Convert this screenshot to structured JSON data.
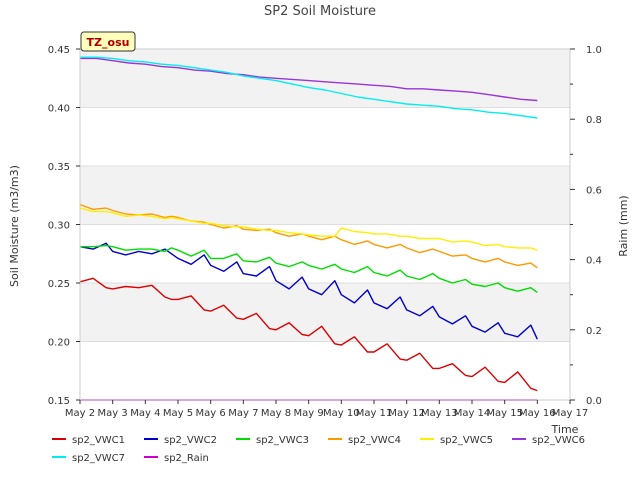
{
  "chart_data": {
    "type": "line",
    "title": "SP2 Soil Moisture",
    "annotation": "TZ_osu",
    "xlabel": "Time",
    "ylabel": "Soil Moisture (m3/m3)",
    "y2label": "Raim (mm)",
    "xlim": [
      2,
      17
    ],
    "ylim": [
      0.15,
      0.45
    ],
    "y2lim": [
      0.0,
      1.0
    ],
    "x_ticks": [
      2,
      3,
      4,
      5,
      6,
      7,
      8,
      9,
      10,
      11,
      12,
      13,
      14,
      15,
      16,
      17
    ],
    "x_tick_labels": [
      "May 2",
      "May 3",
      "May 4",
      "May 5",
      "May 6",
      "May 7",
      "May 8",
      "May 9",
      "May 10",
      "May 11",
      "May 12",
      "May 13",
      "May 14",
      "May 15",
      "May 16",
      "May 17"
    ],
    "y_ticks": [
      0.15,
      0.2,
      0.25,
      0.3,
      0.35,
      0.4,
      0.45
    ],
    "y_tick_labels": [
      "0.15",
      "0.20",
      "0.25",
      "0.30",
      "0.35",
      "0.40",
      "0.45"
    ],
    "y2_ticks": [
      0.0,
      0.2,
      0.4,
      0.6,
      0.8,
      1.0
    ],
    "y2_tick_labels": [
      "0.0",
      "0.2",
      "0.4",
      "0.6",
      "0.8",
      "1.0"
    ],
    "series": [
      {
        "name": "sp2_VWC1",
        "color": "#dd0000",
        "axis": "left",
        "x": [
          2.0,
          2.4,
          2.8,
          3.0,
          3.4,
          3.8,
          4.2,
          4.6,
          4.8,
          5.0,
          5.4,
          5.8,
          6.0,
          6.4,
          6.8,
          7.0,
          7.4,
          7.8,
          8.0,
          8.4,
          8.8,
          9.0,
          9.4,
          9.8,
          10.0,
          10.4,
          10.8,
          11.0,
          11.4,
          11.8,
          12.0,
          12.4,
          12.8,
          13.0,
          13.4,
          13.8,
          14.0,
          14.4,
          14.8,
          15.0,
          15.4,
          15.8,
          16.0
        ],
        "values": [
          0.251,
          0.254,
          0.246,
          0.245,
          0.247,
          0.246,
          0.248,
          0.238,
          0.236,
          0.236,
          0.239,
          0.227,
          0.226,
          0.231,
          0.22,
          0.219,
          0.224,
          0.211,
          0.21,
          0.216,
          0.206,
          0.205,
          0.213,
          0.198,
          0.197,
          0.204,
          0.191,
          0.191,
          0.198,
          0.185,
          0.184,
          0.19,
          0.177,
          0.177,
          0.181,
          0.171,
          0.17,
          0.178,
          0.166,
          0.165,
          0.174,
          0.16,
          0.158
        ]
      },
      {
        "name": "sp2_VWC2",
        "color": "#0000cc",
        "axis": "left",
        "x": [
          2.0,
          2.4,
          2.8,
          3.0,
          3.4,
          3.8,
          4.2,
          4.6,
          4.8,
          5.0,
          5.4,
          5.8,
          6.0,
          6.4,
          6.8,
          7.0,
          7.4,
          7.8,
          8.0,
          8.4,
          8.8,
          9.0,
          9.4,
          9.8,
          10.0,
          10.4,
          10.8,
          11.0,
          11.4,
          11.8,
          12.0,
          12.4,
          12.8,
          13.0,
          13.4,
          13.8,
          14.0,
          14.4,
          14.8,
          15.0,
          15.4,
          15.8,
          16.0
        ],
        "values": [
          0.281,
          0.279,
          0.284,
          0.277,
          0.274,
          0.277,
          0.275,
          0.279,
          0.275,
          0.271,
          0.266,
          0.274,
          0.265,
          0.26,
          0.268,
          0.258,
          0.256,
          0.264,
          0.252,
          0.245,
          0.255,
          0.245,
          0.24,
          0.252,
          0.24,
          0.233,
          0.244,
          0.233,
          0.228,
          0.238,
          0.227,
          0.222,
          0.23,
          0.221,
          0.215,
          0.222,
          0.213,
          0.208,
          0.216,
          0.207,
          0.204,
          0.214,
          0.202
        ]
      },
      {
        "name": "sp2_VWC3",
        "color": "#00dd00",
        "axis": "left",
        "x": [
          2.0,
          2.4,
          2.8,
          3.0,
          3.4,
          3.8,
          4.2,
          4.6,
          4.8,
          5.0,
          5.4,
          5.8,
          6.0,
          6.4,
          6.8,
          7.0,
          7.4,
          7.8,
          8.0,
          8.4,
          8.8,
          9.0,
          9.4,
          9.8,
          10.0,
          10.4,
          10.8,
          11.0,
          11.4,
          11.8,
          12.0,
          12.4,
          12.8,
          13.0,
          13.4,
          13.8,
          14.0,
          14.4,
          14.8,
          15.0,
          15.4,
          15.8,
          16.0
        ],
        "values": [
          0.281,
          0.281,
          0.282,
          0.281,
          0.278,
          0.279,
          0.279,
          0.277,
          0.28,
          0.278,
          0.273,
          0.278,
          0.271,
          0.271,
          0.275,
          0.269,
          0.268,
          0.272,
          0.267,
          0.264,
          0.268,
          0.265,
          0.262,
          0.266,
          0.262,
          0.259,
          0.264,
          0.259,
          0.256,
          0.261,
          0.256,
          0.253,
          0.258,
          0.254,
          0.25,
          0.253,
          0.249,
          0.247,
          0.25,
          0.246,
          0.243,
          0.246,
          0.242
        ]
      },
      {
        "name": "sp2_VWC4",
        "color": "#ff9900",
        "axis": "left",
        "x": [
          2.0,
          2.4,
          2.8,
          3.0,
          3.4,
          3.8,
          4.2,
          4.6,
          4.8,
          5.0,
          5.4,
          5.8,
          6.0,
          6.4,
          6.8,
          7.0,
          7.4,
          7.8,
          8.0,
          8.4,
          8.8,
          9.0,
          9.4,
          9.8,
          10.0,
          10.4,
          10.8,
          11.0,
          11.4,
          11.8,
          12.0,
          12.4,
          12.8,
          13.0,
          13.4,
          13.8,
          14.0,
          14.4,
          14.8,
          15.0,
          15.4,
          15.8,
          16.0
        ],
        "values": [
          0.317,
          0.313,
          0.314,
          0.312,
          0.309,
          0.308,
          0.309,
          0.306,
          0.307,
          0.306,
          0.303,
          0.302,
          0.3,
          0.297,
          0.299,
          0.296,
          0.295,
          0.296,
          0.293,
          0.29,
          0.292,
          0.29,
          0.287,
          0.29,
          0.287,
          0.283,
          0.286,
          0.283,
          0.28,
          0.283,
          0.28,
          0.276,
          0.279,
          0.277,
          0.273,
          0.274,
          0.271,
          0.268,
          0.271,
          0.268,
          0.265,
          0.267,
          0.263
        ]
      },
      {
        "name": "sp2_VWC5",
        "color": "#ffee00",
        "axis": "left",
        "x": [
          2.0,
          2.4,
          2.8,
          3.0,
          3.4,
          3.8,
          4.2,
          4.6,
          4.8,
          5.0,
          5.4,
          5.8,
          6.0,
          6.4,
          6.8,
          7.0,
          7.4,
          7.8,
          8.0,
          8.4,
          8.8,
          9.0,
          9.4,
          9.8,
          10.0,
          10.4,
          10.8,
          11.0,
          11.4,
          11.8,
          12.0,
          12.4,
          12.8,
          13.0,
          13.4,
          13.8,
          14.0,
          14.4,
          14.8,
          15.0,
          15.4,
          15.8,
          16.0
        ],
        "values": [
          0.314,
          0.311,
          0.311,
          0.31,
          0.307,
          0.308,
          0.307,
          0.305,
          0.306,
          0.305,
          0.303,
          0.301,
          0.301,
          0.299,
          0.298,
          0.298,
          0.296,
          0.295,
          0.295,
          0.293,
          0.292,
          0.291,
          0.29,
          0.29,
          0.297,
          0.294,
          0.293,
          0.292,
          0.292,
          0.29,
          0.29,
          0.288,
          0.288,
          0.288,
          0.285,
          0.286,
          0.285,
          0.282,
          0.283,
          0.281,
          0.28,
          0.28,
          0.278
        ]
      },
      {
        "name": "sp2_VWC6",
        "color": "#9933dd",
        "axis": "left",
        "x": [
          2.0,
          2.5,
          3.0,
          3.5,
          4.0,
          4.5,
          5.0,
          5.5,
          6.0,
          6.5,
          7.0,
          7.5,
          8.0,
          8.5,
          9.0,
          9.5,
          10.0,
          10.5,
          11.0,
          11.5,
          12.0,
          12.5,
          13.0,
          13.5,
          14.0,
          14.5,
          15.0,
          15.5,
          16.0
        ],
        "values": [
          0.442,
          0.442,
          0.44,
          0.438,
          0.437,
          0.435,
          0.434,
          0.432,
          0.431,
          0.429,
          0.428,
          0.426,
          0.425,
          0.424,
          0.423,
          0.422,
          0.421,
          0.42,
          0.419,
          0.418,
          0.416,
          0.416,
          0.415,
          0.414,
          0.413,
          0.411,
          0.409,
          0.407,
          0.406
        ]
      },
      {
        "name": "sp2_VWC7",
        "color": "#00eeee",
        "axis": "left",
        "x": [
          2.0,
          2.5,
          3.0,
          3.5,
          4.0,
          4.5,
          5.0,
          5.5,
          6.0,
          6.5,
          7.0,
          7.5,
          8.0,
          8.5,
          9.0,
          9.5,
          10.0,
          10.5,
          11.0,
          11.5,
          12.0,
          12.5,
          13.0,
          13.5,
          14.0,
          14.5,
          15.0,
          15.5,
          16.0
        ],
        "values": [
          0.443,
          0.443,
          0.442,
          0.44,
          0.439,
          0.437,
          0.436,
          0.434,
          0.432,
          0.43,
          0.427,
          0.425,
          0.423,
          0.42,
          0.417,
          0.415,
          0.412,
          0.409,
          0.407,
          0.405,
          0.403,
          0.402,
          0.401,
          0.399,
          0.398,
          0.396,
          0.395,
          0.393,
          0.391
        ]
      },
      {
        "name": "sp2_Rain",
        "color": "#cc00cc",
        "axis": "right",
        "x": [
          2.0,
          16.0
        ],
        "values": [
          0.0,
          0.0
        ]
      }
    ]
  }
}
